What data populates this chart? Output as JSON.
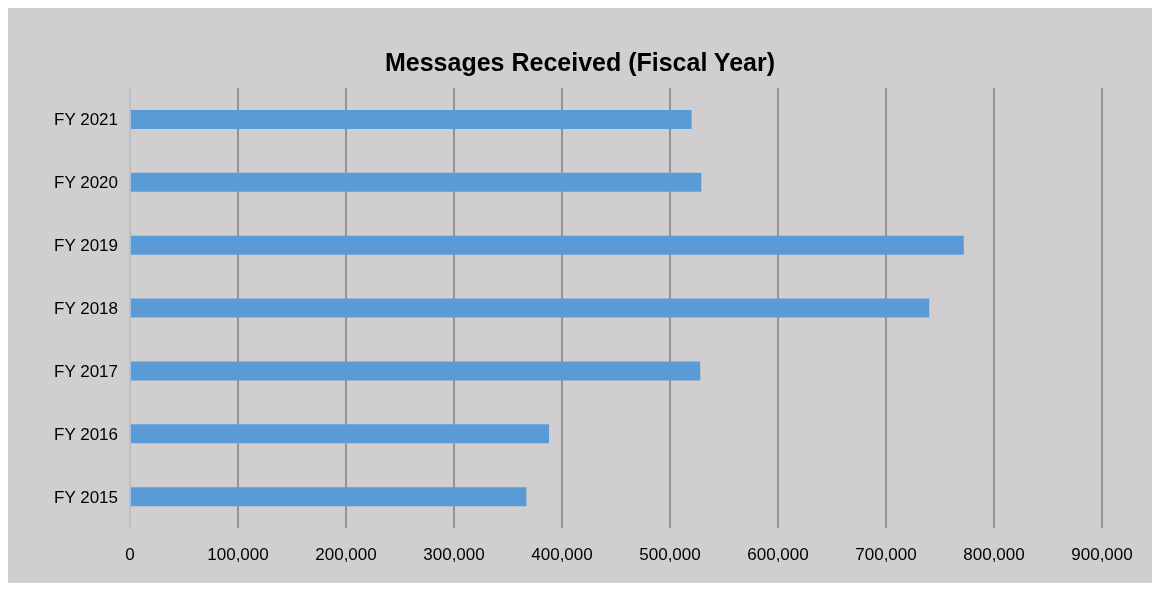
{
  "chart_data": {
    "type": "bar",
    "orientation": "horizontal",
    "title": "Messages Received (Fiscal Year)",
    "categories": [
      "FY 2021",
      "FY 2020",
      "FY 2019",
      "FY 2018",
      "FY 2017",
      "FY 2016",
      "FY 2015"
    ],
    "values": [
      520000,
      529000,
      772000,
      740000,
      528000,
      388000,
      367000
    ],
    "color": "#5b9bd5",
    "xlim": [
      0,
      900000
    ],
    "xticks": [
      0,
      {
        "value": 100000,
        "label": "100,000"
      },
      {
        "value": 200000,
        "label": "200,000"
      },
      {
        "value": 300000,
        "label": "300,000"
      },
      {
        "value": 400000,
        "label": "400,000"
      },
      {
        "value": 500000,
        "label": "500,000"
      },
      {
        "value": 600000,
        "label": "600,000"
      },
      {
        "value": 700000,
        "label": "700,000"
      },
      {
        "value": 800000,
        "label": "800,000"
      },
      {
        "value": 900000,
        "label": "900,000"
      }
    ],
    "grid": "x"
  }
}
